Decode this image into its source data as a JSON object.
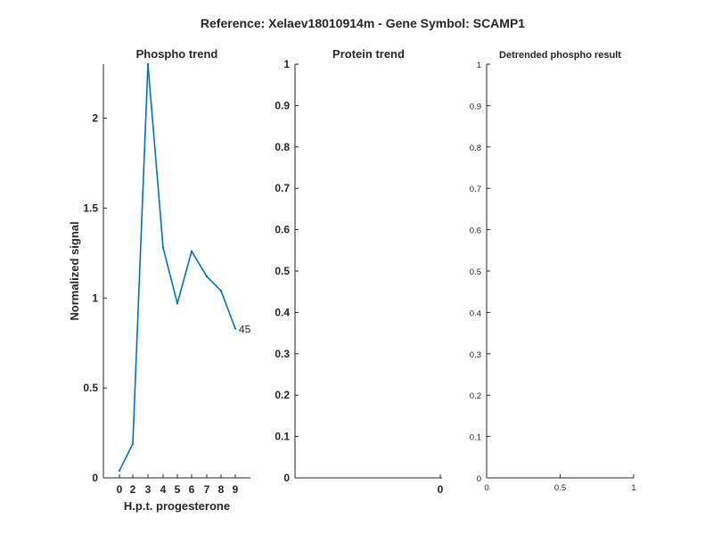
{
  "figure": {
    "title": "Reference:  Xelaev18010914m - Gene Symbol:  SCAMP1"
  },
  "chart_data": [
    {
      "type": "line",
      "title": "Phospho trend",
      "xlabel": "H.p.t. progesterone",
      "ylabel": "Normalized signal",
      "xlim": [
        -1,
        10
      ],
      "ylim": [
        0,
        2.3
      ],
      "xticks": [
        "0",
        "2",
        "3",
        "4",
        "5",
        "6",
        "7",
        "8",
        "9"
      ],
      "yticks": [
        "0",
        "0.5",
        "1",
        "1.5",
        "2"
      ],
      "x": [
        0,
        2,
        3,
        4,
        5,
        6,
        7,
        8,
        9
      ],
      "series": [
        {
          "values": [
            0.04,
            0.19,
            2.3,
            1.28,
            0.97,
            1.26,
            1.12,
            1.04,
            0.83
          ],
          "end_label": "45",
          "color": "#0072BD"
        }
      ],
      "grid": false
    },
    {
      "type": "line",
      "title": "Protein trend",
      "xlabel": "",
      "ylabel": "",
      "ylim": [
        0,
        1
      ],
      "xticks": [
        "0"
      ],
      "yticks": [
        "0",
        "0.1",
        "0.2",
        "0.3",
        "0.4",
        "0.5",
        "0.6",
        "0.7",
        "0.8",
        "0.9",
        "1"
      ],
      "series": [],
      "grid": false
    },
    {
      "type": "line",
      "title": "Detrended phospho result",
      "xlabel": "",
      "ylabel": "",
      "xlim": [
        0,
        1
      ],
      "ylim": [
        0,
        1
      ],
      "xticks": [
        "0",
        "0.5",
        "1"
      ],
      "yticks": [
        "0",
        "0.1",
        "0.2",
        "0.3",
        "0.4",
        "0.5",
        "0.6",
        "0.7",
        "0.8",
        "0.9",
        "1"
      ],
      "series": [],
      "grid": false
    }
  ]
}
